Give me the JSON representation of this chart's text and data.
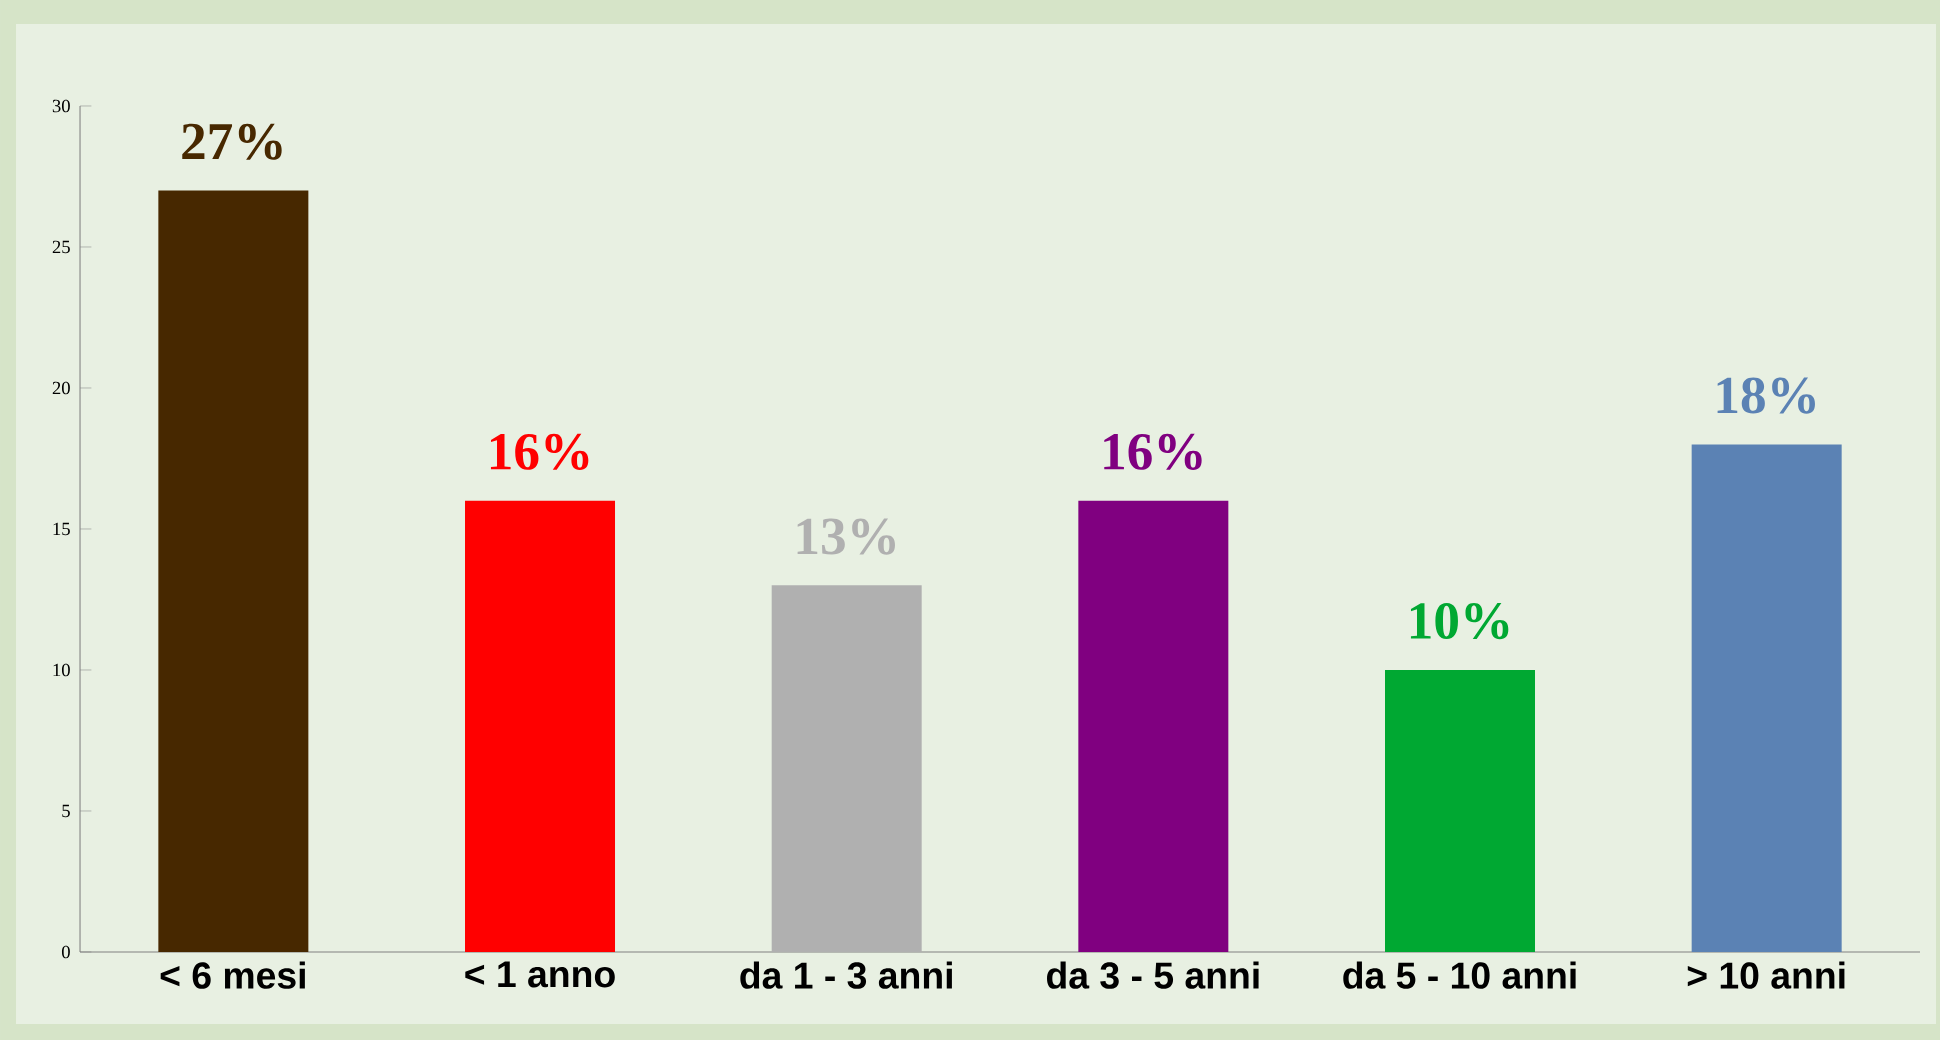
{
  "chart_data": {
    "type": "bar",
    "categories": [
      "< 6 mesi",
      "< 1 anno",
      "da 1 - 3 anni",
      "da 3 - 5 anni",
      "da 5 - 10 anni",
      "> 10 anni"
    ],
    "values": [
      27,
      16,
      13,
      16,
      10,
      18
    ],
    "colors": [
      "#472800",
      "#ff0000",
      "#b0b0b0",
      "#800080",
      "#00a832",
      "#5b82b4"
    ],
    "value_labels": [
      "27%",
      "16%",
      "13%",
      "16%",
      "10%",
      "18%"
    ],
    "ylim": [
      0,
      30
    ],
    "yticks": [
      0,
      5,
      10,
      15,
      20,
      25,
      30
    ],
    "grid": false
  }
}
